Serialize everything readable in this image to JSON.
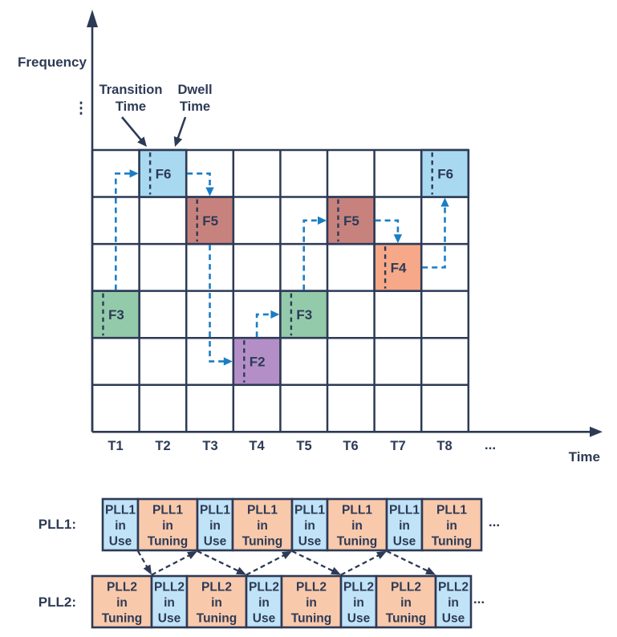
{
  "colors": {
    "ink": "#2d3a56",
    "arrow_blue": "#1a7dc5",
    "background": "#ffffff",
    "f6": "#a9d9f1",
    "f5": "#c8827d",
    "f4": "#f7a888",
    "f3": "#93cbaa",
    "f2": "#b48fc7",
    "pll_use": "#c0e3f7",
    "pll_tuning": "#f9c9ab"
  },
  "axes": {
    "y_label": "Frequency",
    "x_label": "Time",
    "y_ellipsis": "⋮",
    "x_ellipsis": "..."
  },
  "annotations": {
    "transition_label": [
      "Transition",
      "Time"
    ],
    "dwell_label": [
      "Dwell",
      "Time"
    ]
  },
  "grid": {
    "rows": 6,
    "cols": 8,
    "tick_labels": [
      "T1",
      "T2",
      "T3",
      "T4",
      "T5",
      "T6",
      "T7",
      "T8"
    ]
  },
  "chart_data": {
    "type": "table",
    "description": "Frequency hopping sequence: occupied frequency per time slot, with transition time and dwell time marked in each occupied cell",
    "x_ticks": [
      "T1",
      "T2",
      "T3",
      "T4",
      "T5",
      "T6",
      "T7",
      "T8"
    ],
    "hops": [
      {
        "time": "T1",
        "frequency": "F3",
        "row": 3,
        "col": 0,
        "color": "#93cbaa"
      },
      {
        "time": "T2",
        "frequency": "F6",
        "row": 0,
        "col": 1,
        "color": "#a9d9f1"
      },
      {
        "time": "T3",
        "frequency": "F5",
        "row": 1,
        "col": 2,
        "color": "#c8827d"
      },
      {
        "time": "T4",
        "frequency": "F2",
        "row": 4,
        "col": 3,
        "color": "#b48fc7"
      },
      {
        "time": "T5",
        "frequency": "F3",
        "row": 3,
        "col": 4,
        "color": "#93cbaa"
      },
      {
        "time": "T6",
        "frequency": "F5",
        "row": 1,
        "col": 5,
        "color": "#c8827d"
      },
      {
        "time": "T7",
        "frequency": "F4",
        "row": 2,
        "col": 6,
        "color": "#f7a888"
      },
      {
        "time": "T8",
        "frequency": "F6",
        "row": 0,
        "col": 7,
        "color": "#a9d9f1"
      }
    ]
  },
  "pll": {
    "rows": [
      {
        "label": "PLL1:",
        "ellipsis": "...",
        "cells": [
          {
            "state": "use",
            "lines": [
              "PLL1",
              "in",
              "Use"
            ]
          },
          {
            "state": "tuning",
            "lines": [
              "PLL1",
              "in",
              "Tuning"
            ]
          },
          {
            "state": "use",
            "lines": [
              "PLL1",
              "in",
              "Use"
            ]
          },
          {
            "state": "tuning",
            "lines": [
              "PLL1",
              "in",
              "Tuning"
            ]
          },
          {
            "state": "use",
            "lines": [
              "PLL1",
              "in",
              "Use"
            ]
          },
          {
            "state": "tuning",
            "lines": [
              "PLL1",
              "in",
              "Tuning"
            ]
          },
          {
            "state": "use",
            "lines": [
              "PLL1",
              "in",
              "Use"
            ]
          },
          {
            "state": "tuning",
            "lines": [
              "PLL1",
              "in",
              "Tuning"
            ]
          }
        ]
      },
      {
        "label": "PLL2:",
        "ellipsis": "...",
        "cells": [
          {
            "state": "tuning",
            "lines": [
              "PLL2",
              "in",
              "Tuning"
            ]
          },
          {
            "state": "use",
            "lines": [
              "PLL2",
              "in",
              "Use"
            ]
          },
          {
            "state": "tuning",
            "lines": [
              "PLL2",
              "in",
              "Tuning"
            ]
          },
          {
            "state": "use",
            "lines": [
              "PLL2",
              "in",
              "Use"
            ]
          },
          {
            "state": "tuning",
            "lines": [
              "PLL2",
              "in",
              "Tuning"
            ]
          },
          {
            "state": "use",
            "lines": [
              "PLL2",
              "in",
              "Use"
            ]
          },
          {
            "state": "tuning",
            "lines": [
              "PLL2",
              "in",
              "Tuning"
            ]
          },
          {
            "state": "use",
            "lines": [
              "PLL2",
              "in",
              "Use"
            ]
          }
        ]
      }
    ]
  }
}
